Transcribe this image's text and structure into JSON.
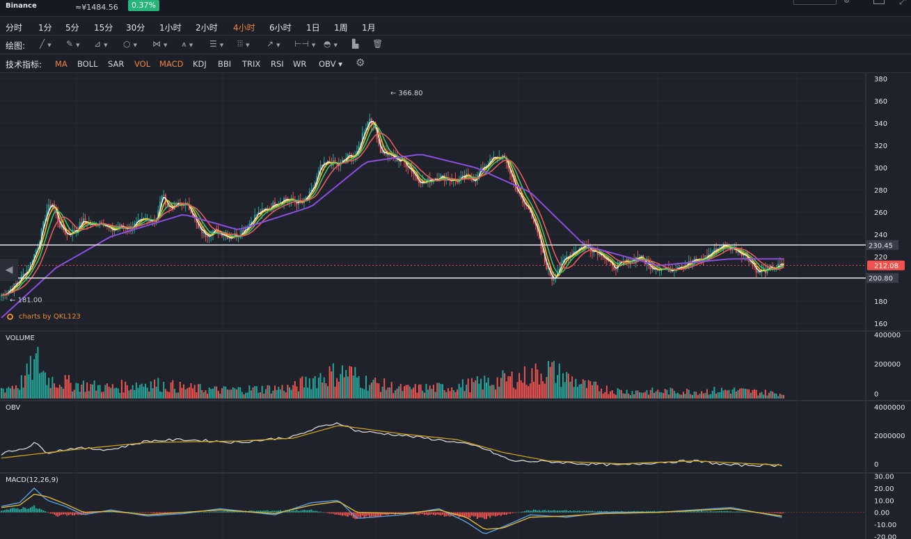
{
  "header": {
    "exchange": "Binance",
    "price": "≈¥1484.56",
    "change": "0.37%"
  },
  "timeframes": [
    {
      "label": "分时",
      "active": false
    },
    {
      "label": "1分",
      "active": false
    },
    {
      "label": "5分",
      "active": false
    },
    {
      "label": "15分",
      "active": false
    },
    {
      "label": "30分",
      "active": false
    },
    {
      "label": "1小时",
      "active": false
    },
    {
      "label": "2小时",
      "active": false
    },
    {
      "label": "4小时",
      "active": true
    },
    {
      "label": "6小时",
      "active": false
    },
    {
      "label": "1日",
      "active": false
    },
    {
      "label": "1周",
      "active": false
    },
    {
      "label": "1月",
      "active": false
    }
  ],
  "drawing": {
    "label": "绘图:",
    "tools": [
      {
        "icon": "line-tool-icon",
        "glyph": "╱"
      },
      {
        "icon": "pen-tool-icon",
        "glyph": "✎"
      },
      {
        "icon": "channel-tool-icon",
        "glyph": "⊿"
      },
      {
        "icon": "ellipse-tool-icon",
        "glyph": "○"
      },
      {
        "icon": "pattern-tool-icon",
        "glyph": "⋈"
      },
      {
        "icon": "fork-tool-icon",
        "glyph": "⩚"
      },
      {
        "icon": "fib-levels-icon",
        "glyph": "☰"
      },
      {
        "icon": "gann-grid-icon",
        "glyph": "⦙⦙⦙"
      },
      {
        "icon": "arrow-tool-icon",
        "glyph": "↗"
      },
      {
        "icon": "measure-tool-icon",
        "glyph": "⊢⊣"
      },
      {
        "icon": "eye-icon",
        "glyph": "◓"
      }
    ],
    "extra": [
      {
        "icon": "bar-chart-icon",
        "glyph": "▙"
      },
      {
        "icon": "trash-icon",
        "glyph": "🗑"
      }
    ]
  },
  "indicators": {
    "label": "技术指标:",
    "items": [
      {
        "label": "MA",
        "on": true
      },
      {
        "label": "BOLL",
        "on": false
      },
      {
        "label": "SAR",
        "on": false
      },
      {
        "label": "VOL",
        "on": true
      },
      {
        "label": "MACD",
        "on": true
      },
      {
        "label": "KDJ",
        "on": false
      },
      {
        "label": "BBI",
        "on": false
      },
      {
        "label": "TRIX",
        "on": false
      },
      {
        "label": "RSI",
        "on": false
      },
      {
        "label": "WR",
        "on": false
      },
      {
        "label": "OBV ▾",
        "on": false
      }
    ]
  },
  "watermark": "charts by QKL123",
  "colors": {
    "up": "#26a69a",
    "down": "#ef5350",
    "ma1": "#ffffff",
    "ma2": "#f5c518",
    "ma3": "#3fbf6f",
    "ma4": "#e85c5c",
    "ma5": "#8a4fe0",
    "current": "#ef5350"
  },
  "chart_data": [
    {
      "type": "candlestick",
      "title": "",
      "ylim": [
        155,
        385
      ],
      "yticks": [
        160,
        180,
        200,
        220,
        240,
        260,
        280,
        300,
        320,
        340,
        360,
        380
      ],
      "annotations": {
        "high": 366.8,
        "high_label": "← 366.80",
        "low": 181.0,
        "low_label": "← 181.00"
      },
      "levels": [
        {
          "value": 230.45,
          "label": "230.45",
          "style": "solid-white"
        },
        {
          "value": 200.8,
          "label": "200.80",
          "style": "solid-white"
        },
        {
          "value": 212.08,
          "label": "212.08",
          "style": "current-price"
        }
      ],
      "close_path": [
        [
          0,
          185
        ],
        [
          8,
          195
        ],
        [
          15,
          210
        ],
        [
          20,
          230
        ],
        [
          25,
          262
        ],
        [
          28,
          268
        ],
        [
          32,
          248
        ],
        [
          36,
          240
        ],
        [
          40,
          243
        ],
        [
          45,
          252
        ],
        [
          50,
          248
        ],
        [
          55,
          252
        ],
        [
          60,
          243
        ],
        [
          65,
          247
        ],
        [
          70,
          246
        ],
        [
          75,
          250
        ],
        [
          80,
          254
        ],
        [
          85,
          253
        ],
        [
          88,
          276
        ],
        [
          92,
          264
        ],
        [
          96,
          266
        ],
        [
          100,
          268
        ],
        [
          104,
          262
        ],
        [
          108,
          245
        ],
        [
          112,
          240
        ],
        [
          116,
          243
        ],
        [
          120,
          242
        ],
        [
          125,
          238
        ],
        [
          130,
          240
        ],
        [
          134,
          246
        ],
        [
          140,
          258
        ],
        [
          145,
          262
        ],
        [
          150,
          268
        ],
        [
          155,
          272
        ],
        [
          160,
          270
        ],
        [
          165,
          268
        ],
        [
          170,
          278
        ],
        [
          175,
          300
        ],
        [
          180,
          305
        ],
        [
          185,
          302
        ],
        [
          190,
          310
        ],
        [
          195,
          312
        ],
        [
          198,
          330
        ],
        [
          202,
          345
        ],
        [
          205,
          335
        ],
        [
          208,
          315
        ],
        [
          212,
          312
        ],
        [
          216,
          308
        ],
        [
          220,
          306
        ],
        [
          224,
          300
        ],
        [
          228,
          290
        ],
        [
          232,
          286
        ],
        [
          236,
          290
        ],
        [
          240,
          292
        ],
        [
          245,
          290
        ],
        [
          250,
          288
        ],
        [
          255,
          292
        ],
        [
          260,
          290
        ],
        [
          265,
          302
        ],
        [
          270,
          308
        ],
        [
          275,
          310
        ],
        [
          278,
          300
        ],
        [
          282,
          282
        ],
        [
          286,
          268
        ],
        [
          290,
          262
        ],
        [
          294,
          240
        ],
        [
          298,
          215
        ],
        [
          302,
          200
        ],
        [
          306,
          210
        ],
        [
          310,
          220
        ],
        [
          315,
          226
        ],
        [
          320,
          230
        ],
        [
          325,
          226
        ],
        [
          330,
          222
        ],
        [
          335,
          210
        ],
        [
          340,
          213
        ],
        [
          345,
          217
        ],
        [
          350,
          220
        ],
        [
          355,
          212
        ],
        [
          360,
          210
        ],
        [
          365,
          208
        ],
        [
          370,
          211
        ],
        [
          375,
          213
        ],
        [
          380,
          216
        ],
        [
          385,
          218
        ],
        [
          390,
          224
        ],
        [
          395,
          230
        ],
        [
          400,
          228
        ],
        [
          405,
          225
        ],
        [
          410,
          218
        ],
        [
          415,
          206
        ],
        [
          420,
          208
        ],
        [
          424,
          210
        ],
        [
          428,
          212
        ]
      ],
      "ma_series": [
        {
          "name": "",
          "color": "#8a4fe0",
          "points": [
            [
              0,
              165
            ],
            [
              30,
              210
            ],
            [
              60,
              238
            ],
            [
              100,
              258
            ],
            [
              130,
              244
            ],
            [
              170,
              265
            ],
            [
              200,
              305
            ],
            [
              230,
              312
            ],
            [
              260,
              300
            ],
            [
              290,
              278
            ],
            [
              320,
              230
            ],
            [
              360,
              212
            ],
            [
              400,
              218
            ],
            [
              428,
              218
            ]
          ]
        }
      ],
      "x_count": 430
    },
    {
      "type": "bar",
      "title": "VOLUME",
      "ylim": [
        0,
        400000
      ],
      "yticks": [
        "400000",
        "200000",
        "0"
      ],
      "bars_approx": [
        [
          0,
          80000
        ],
        [
          10,
          120000
        ],
        [
          20,
          310000
        ],
        [
          25,
          170000
        ],
        [
          30,
          150000
        ],
        [
          40,
          120000
        ],
        [
          60,
          90000
        ],
        [
          80,
          130000
        ],
        [
          100,
          90000
        ],
        [
          120,
          70000
        ],
        [
          140,
          80000
        ],
        [
          160,
          90000
        ],
        [
          170,
          160000
        ],
        [
          180,
          200000
        ],
        [
          190,
          220000
        ],
        [
          200,
          140000
        ],
        [
          220,
          80000
        ],
        [
          240,
          90000
        ],
        [
          260,
          120000
        ],
        [
          290,
          190000
        ],
        [
          300,
          240000
        ],
        [
          320,
          110000
        ],
        [
          340,
          60000
        ],
        [
          360,
          60000
        ],
        [
          380,
          60000
        ],
        [
          400,
          70000
        ],
        [
          420,
          50000
        ],
        [
          428,
          40000
        ]
      ]
    },
    {
      "type": "line",
      "title": "OBV",
      "ylim": [
        -500000,
        4400000
      ],
      "yticks": [
        "4000000",
        "2000000",
        "0"
      ],
      "series": [
        {
          "name": "",
          "color": "#d9d9d9",
          "points": [
            [
              0,
              700000
            ],
            [
              15,
              1200000
            ],
            [
              18,
              1500000
            ],
            [
              25,
              800000
            ],
            [
              40,
              1100000
            ],
            [
              60,
              1000000
            ],
            [
              80,
              1600000
            ],
            [
              100,
              1700000
            ],
            [
              130,
              1500000
            ],
            [
              160,
              1900000
            ],
            [
              175,
              2600000
            ],
            [
              185,
              2900000
            ],
            [
              195,
              2300000
            ],
            [
              220,
              2000000
            ],
            [
              245,
              1600000
            ],
            [
              262,
              1200000
            ],
            [
              280,
              200000
            ],
            [
              300,
              150000
            ],
            [
              320,
              0
            ],
            [
              340,
              -100000
            ],
            [
              360,
              100000
            ],
            [
              380,
              200000
            ],
            [
              400,
              -100000
            ],
            [
              428,
              -100000
            ]
          ]
        },
        {
          "name": "",
          "color": "#c9a21e",
          "points": [
            [
              0,
              400000
            ],
            [
              40,
              1000000
            ],
            [
              80,
              1500000
            ],
            [
              130,
              1600000
            ],
            [
              160,
              1800000
            ],
            [
              185,
              2700000
            ],
            [
              220,
              2100000
            ],
            [
              250,
              1700000
            ],
            [
              275,
              800000
            ],
            [
              300,
              200000
            ],
            [
              340,
              0
            ],
            [
              380,
              200000
            ],
            [
              428,
              -100000
            ]
          ]
        }
      ]
    },
    {
      "type": "line",
      "title": "MACD(12,26,9)",
      "ylim": [
        -22,
        32
      ],
      "yticks": [
        "30.00",
        "20.00",
        "10.00",
        "0.00",
        "-10.00",
        "-20.00"
      ],
      "series": [
        {
          "name": "",
          "color": "#5aa0e0",
          "points": [
            [
              0,
              5
            ],
            [
              10,
              8
            ],
            [
              18,
              20
            ],
            [
              25,
              10
            ],
            [
              35,
              5
            ],
            [
              45,
              -2
            ],
            [
              60,
              2
            ],
            [
              80,
              -3
            ],
            [
              100,
              -1
            ],
            [
              120,
              3
            ],
            [
              150,
              -2
            ],
            [
              170,
              8
            ],
            [
              185,
              10
            ],
            [
              195,
              -5
            ],
            [
              220,
              -2
            ],
            [
              240,
              3
            ],
            [
              255,
              -8
            ],
            [
              265,
              -18
            ],
            [
              275,
              -12
            ],
            [
              290,
              -2
            ],
            [
              310,
              -4
            ],
            [
              330,
              0
            ],
            [
              360,
              0
            ],
            [
              400,
              4
            ],
            [
              428,
              -4
            ]
          ]
        },
        {
          "name": "",
          "color": "#e0b83a",
          "points": [
            [
              0,
              4
            ],
            [
              10,
              6
            ],
            [
              18,
              15
            ],
            [
              25,
              13
            ],
            [
              35,
              7
            ],
            [
              45,
              0
            ],
            [
              60,
              1
            ],
            [
              80,
              -2
            ],
            [
              100,
              0
            ],
            [
              120,
              2
            ],
            [
              150,
              -1
            ],
            [
              170,
              6
            ],
            [
              185,
              9
            ],
            [
              195,
              0
            ],
            [
              220,
              -1
            ],
            [
              240,
              2
            ],
            [
              255,
              -4
            ],
            [
              265,
              -14
            ],
            [
              275,
              -13
            ],
            [
              290,
              -4
            ],
            [
              310,
              -3
            ],
            [
              330,
              -1
            ],
            [
              360,
              0
            ],
            [
              400,
              3
            ],
            [
              428,
              -3
            ]
          ]
        }
      ],
      "hist_approx": [
        [
          0,
          2
        ],
        [
          18,
          5
        ],
        [
          30,
          -3
        ],
        [
          45,
          -2
        ],
        [
          60,
          1
        ],
        [
          90,
          -1
        ],
        [
          120,
          1
        ],
        [
          170,
          2
        ],
        [
          195,
          -5
        ],
        [
          220,
          -1
        ],
        [
          255,
          -4
        ],
        [
          265,
          -5
        ],
        [
          290,
          2
        ],
        [
          330,
          1
        ],
        [
          400,
          1
        ],
        [
          428,
          -1
        ]
      ]
    }
  ]
}
